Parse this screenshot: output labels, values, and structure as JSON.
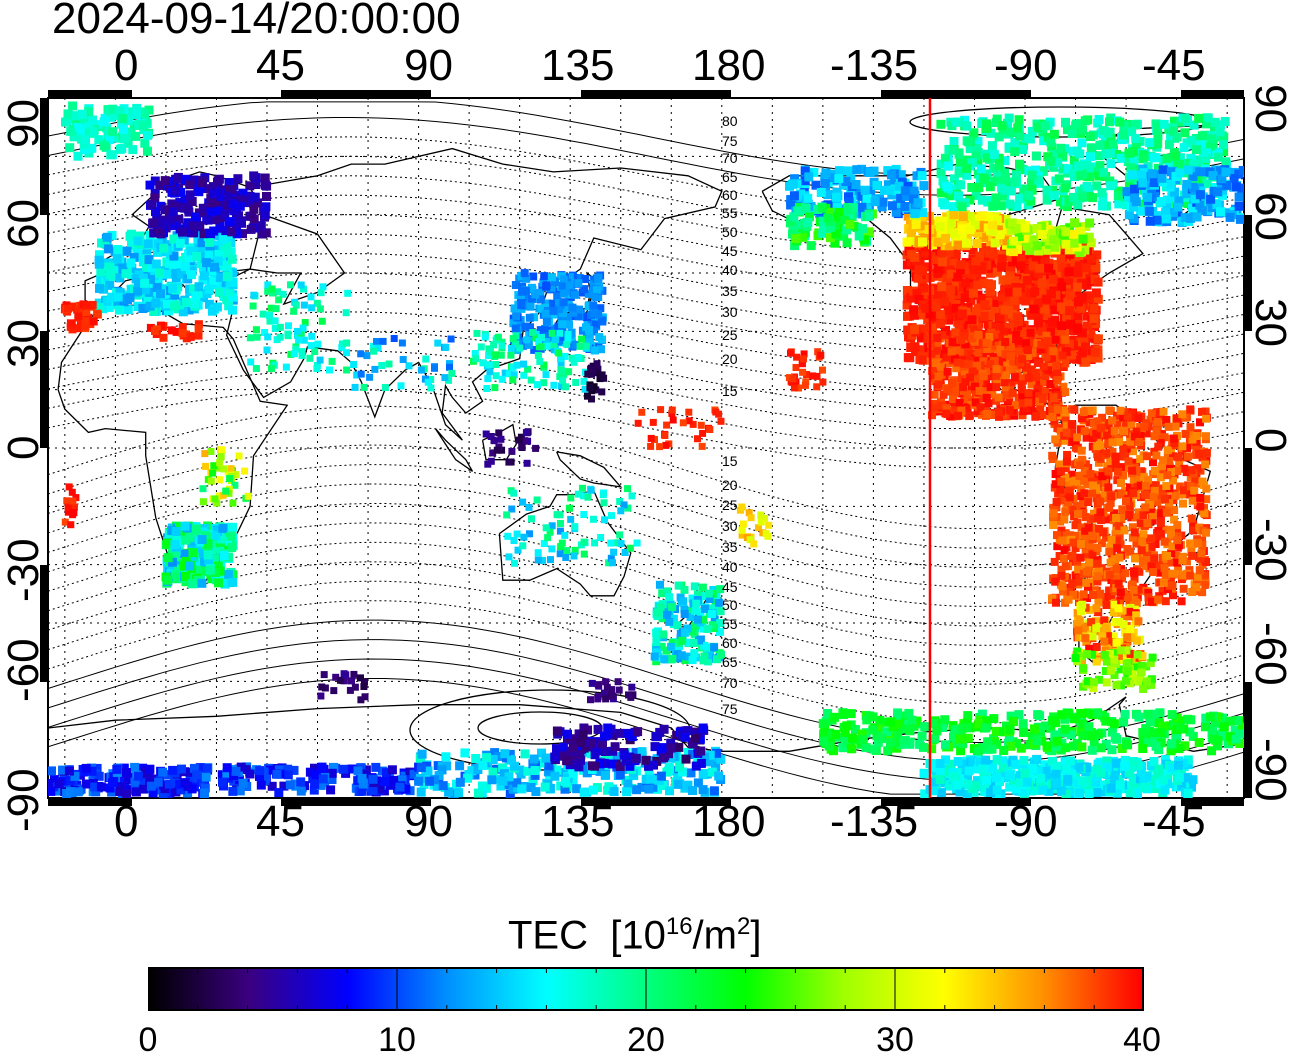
{
  "title": "2024-09-14/20:00:00",
  "map": {
    "top_lon_labels": [
      "0",
      "45",
      "90",
      "135",
      "180",
      "-135",
      "-90",
      "-45"
    ],
    "bottom_lon_labels": [
      "0",
      "45",
      "90",
      "135",
      "180",
      "-135",
      "-90",
      "-45"
    ],
    "left_lat_labels": [
      "90",
      "60",
      "30",
      "0",
      "-30",
      "-60",
      "-90"
    ],
    "right_lat_labels": [
      "90",
      "60",
      "30",
      "0",
      "-30",
      "-60",
      "-90"
    ],
    "lon_range": [
      -20,
      335
    ],
    "lat_range": [
      -90,
      90
    ],
    "grid": true,
    "subsolar_longitude_marker": -120,
    "marker_color": "#ff0000",
    "magnetic_lat_contours_north": [
      "80",
      "75",
      "70",
      "65",
      "60",
      "55",
      "50",
      "45",
      "40",
      "35",
      "30",
      "25",
      "20",
      "15"
    ],
    "magnetic_lat_contours_south": [
      "15",
      "20",
      "25",
      "30",
      "35",
      "40",
      "45",
      "50",
      "55",
      "60",
      "65",
      "70",
      "75"
    ]
  },
  "colorbar": {
    "title": "TEC",
    "unit_prefix": "[10",
    "unit_exp": "16",
    "unit_mid": "/m",
    "unit_exp2": "2",
    "unit_suffix": "]",
    "ticks": [
      "0",
      "10",
      "20",
      "30",
      "40"
    ],
    "range": [
      0,
      40
    ],
    "colors": [
      "#000000",
      "#3a0080",
      "#0000ff",
      "#0090ff",
      "#00ffff",
      "#00ff80",
      "#00ff00",
      "#a0ff00",
      "#ffff00",
      "#ff9000",
      "#ff0000"
    ]
  }
}
